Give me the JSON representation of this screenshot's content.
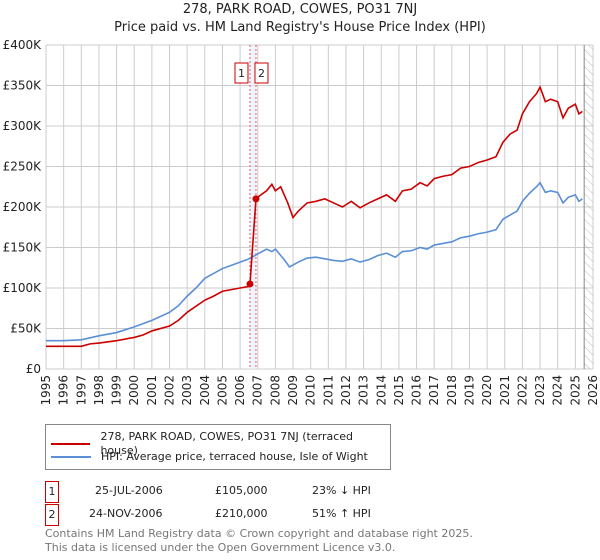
{
  "title": "278, PARK ROAD, COWES, PO31 7NJ",
  "subtitle": "Price paid vs. HM Land Registry's House Price Index (HPI)",
  "chart_data": {
    "type": "line",
    "title": "278, PARK ROAD, COWES, PO31 7NJ",
    "subtitle": "Price paid vs. HM Land Registry's House Price Index (HPI)",
    "xlim": [
      1995,
      2026
    ],
    "ylim": [
      0,
      400000
    ],
    "xticks": [
      "1995",
      "1996",
      "1997",
      "1998",
      "1999",
      "2000",
      "2001",
      "2002",
      "2003",
      "2004",
      "2005",
      "2006",
      "2007",
      "2008",
      "2009",
      "2010",
      "2011",
      "2012",
      "2013",
      "2014",
      "2015",
      "2016",
      "2017",
      "2018",
      "2019",
      "2020",
      "2021",
      "2022",
      "2023",
      "2024",
      "2025",
      "2026"
    ],
    "yticks": [
      {
        "v": 0,
        "label": "£0"
      },
      {
        "v": 50000,
        "label": "£50K"
      },
      {
        "v": 100000,
        "label": "£100K"
      },
      {
        "v": 150000,
        "label": "£150K"
      },
      {
        "v": 200000,
        "label": "£200K"
      },
      {
        "v": 250000,
        "label": "£250K"
      },
      {
        "v": 300000,
        "label": "£300K"
      },
      {
        "v": 350000,
        "label": "£350K"
      },
      {
        "v": 400000,
        "label": "£400K"
      }
    ],
    "grid": true,
    "forecast_hatch_from": 2025.5,
    "series": [
      {
        "name": "278, PARK ROAD, COWES, PO31 7NJ (terraced house)",
        "color": "#cc0000",
        "points": [
          [
            1995,
            28
          ],
          [
            1996,
            28
          ],
          [
            1997,
            28
          ],
          [
            1997.5,
            31
          ],
          [
            1998,
            32
          ],
          [
            1999,
            35
          ],
          [
            2000,
            39
          ],
          [
            2000.5,
            42
          ],
          [
            2001,
            47
          ],
          [
            2002,
            53
          ],
          [
            2002.5,
            60
          ],
          [
            2003,
            70
          ],
          [
            2004,
            85
          ],
          [
            2004.5,
            90
          ],
          [
            2005,
            96
          ],
          [
            2005.5,
            98
          ],
          [
            2006,
            100
          ],
          [
            2006.5,
            102
          ],
          [
            2006.56,
            105
          ],
          [
            2006.9,
            210
          ],
          [
            2007,
            212
          ],
          [
            2007.5,
            220
          ],
          [
            2007.8,
            228
          ],
          [
            2008,
            220
          ],
          [
            2008.3,
            225
          ],
          [
            2008.7,
            205
          ],
          [
            2009,
            187
          ],
          [
            2009.3,
            195
          ],
          [
            2009.8,
            205
          ],
          [
            2010.3,
            207
          ],
          [
            2010.8,
            210
          ],
          [
            2011.3,
            205
          ],
          [
            2011.8,
            200
          ],
          [
            2012.3,
            207
          ],
          [
            2012.8,
            199
          ],
          [
            2013.3,
            205
          ],
          [
            2013.8,
            210
          ],
          [
            2014.3,
            215
          ],
          [
            2014.8,
            207
          ],
          [
            2015.2,
            220
          ],
          [
            2015.7,
            222
          ],
          [
            2016.2,
            230
          ],
          [
            2016.6,
            226
          ],
          [
            2017,
            235
          ],
          [
            2017.5,
            238
          ],
          [
            2018,
            240
          ],
          [
            2018.5,
            248
          ],
          [
            2019,
            250
          ],
          [
            2019.5,
            255
          ],
          [
            2020,
            258
          ],
          [
            2020.5,
            262
          ],
          [
            2020.9,
            280
          ],
          [
            2021.3,
            290
          ],
          [
            2021.7,
            295
          ],
          [
            2022,
            315
          ],
          [
            2022.4,
            330
          ],
          [
            2022.8,
            340
          ],
          [
            2023,
            348
          ],
          [
            2023.3,
            330
          ],
          [
            2023.6,
            333
          ],
          [
            2024,
            330
          ],
          [
            2024.3,
            310
          ],
          [
            2024.6,
            322
          ],
          [
            2025,
            327
          ],
          [
            2025.2,
            315
          ],
          [
            2025.4,
            318
          ]
        ]
      },
      {
        "name": "HPI: Average price, terraced house, Isle of Wight",
        "color": "#5b8fd6",
        "points": [
          [
            1995,
            35
          ],
          [
            1996,
            35
          ],
          [
            1997,
            36
          ],
          [
            1998,
            41
          ],
          [
            1999,
            45
          ],
          [
            2000,
            52
          ],
          [
            2001,
            60
          ],
          [
            2002,
            70
          ],
          [
            2002.5,
            78
          ],
          [
            2003,
            90
          ],
          [
            2003.5,
            100
          ],
          [
            2004,
            112
          ],
          [
            2004.5,
            118
          ],
          [
            2005,
            124
          ],
          [
            2005.5,
            128
          ],
          [
            2006,
            132
          ],
          [
            2006.5,
            136
          ],
          [
            2007,
            142
          ],
          [
            2007.5,
            148
          ],
          [
            2007.8,
            145
          ],
          [
            2008,
            148
          ],
          [
            2008.5,
            135
          ],
          [
            2008.8,
            126
          ],
          [
            2009.3,
            132
          ],
          [
            2009.8,
            137
          ],
          [
            2010.3,
            138
          ],
          [
            2010.8,
            136
          ],
          [
            2011.3,
            134
          ],
          [
            2011.8,
            133
          ],
          [
            2012.3,
            136
          ],
          [
            2012.8,
            132
          ],
          [
            2013.3,
            135
          ],
          [
            2013.8,
            140
          ],
          [
            2014.3,
            143
          ],
          [
            2014.8,
            138
          ],
          [
            2015.2,
            145
          ],
          [
            2015.7,
            146
          ],
          [
            2016.2,
            150
          ],
          [
            2016.6,
            148
          ],
          [
            2017,
            153
          ],
          [
            2017.5,
            155
          ],
          [
            2018,
            157
          ],
          [
            2018.5,
            162
          ],
          [
            2019,
            164
          ],
          [
            2019.5,
            167
          ],
          [
            2020,
            169
          ],
          [
            2020.5,
            172
          ],
          [
            2020.9,
            185
          ],
          [
            2021.3,
            190
          ],
          [
            2021.7,
            195
          ],
          [
            2022,
            207
          ],
          [
            2022.4,
            217
          ],
          [
            2022.8,
            225
          ],
          [
            2023,
            230
          ],
          [
            2023.3,
            218
          ],
          [
            2023.6,
            220
          ],
          [
            2024,
            218
          ],
          [
            2024.3,
            205
          ],
          [
            2024.6,
            212
          ],
          [
            2025,
            215
          ],
          [
            2025.2,
            207
          ],
          [
            2025.4,
            210
          ]
        ]
      }
    ],
    "point_units": "thousand GBP",
    "annotations": [
      {
        "label": "1",
        "x": 2006.56,
        "y": 105000
      },
      {
        "label": "2",
        "x": 2006.9,
        "y": 210000
      }
    ]
  },
  "legend": {
    "items": [
      {
        "label": "278, PARK ROAD, COWES, PO31 7NJ (terraced house)",
        "color": "#cc0000"
      },
      {
        "label": "HPI: Average price, terraced house, Isle of Wight",
        "color": "#5b8fd6"
      }
    ]
  },
  "sales": [
    {
      "num": "1",
      "date": "25-JUL-2006",
      "price": "£105,000",
      "hpi": "23% ↓ HPI"
    },
    {
      "num": "2",
      "date": "24-NOV-2006",
      "price": "£210,000",
      "hpi": "51% ↑ HPI"
    }
  ],
  "footer": {
    "line1": "Contains HM Land Registry data © Crown copyright and database right 2025.",
    "line2": "This data is licensed under the Open Government Licence v3.0."
  }
}
